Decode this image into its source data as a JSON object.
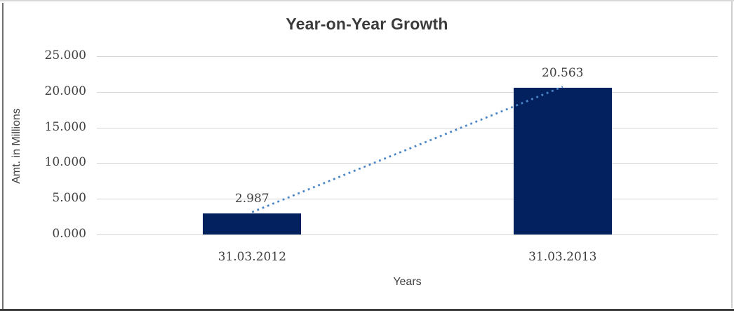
{
  "chart_data": {
    "type": "bar",
    "title": "Year-on-Year Growth",
    "xlabel": "Years",
    "ylabel": "Amt. in Millions",
    "categories": [
      "31.03.2012",
      "31.03.2013"
    ],
    "values": [
      2987,
      20563
    ],
    "data_labels": [
      "2.987",
      "20.563"
    ],
    "yticks": [
      {
        "value": 0,
        "label": "0.000"
      },
      {
        "value": 5000,
        "label": "5.000"
      },
      {
        "value": 10000,
        "label": "10.000"
      },
      {
        "value": 15000,
        "label": "15.000"
      },
      {
        "value": 20000,
        "label": "20.000"
      },
      {
        "value": 25000,
        "label": "25.000"
      }
    ],
    "ylim": [
      0,
      25000
    ],
    "grid": "horizontal",
    "legend": "none",
    "trendline": {
      "type": "linear",
      "style": "dotted",
      "color": "#4a86c8"
    },
    "colors": {
      "bar": "#03215f",
      "gridline": "#d4d4d4",
      "text": "#3f3f3f",
      "title": "#3b3b3b",
      "background": "#ffffff"
    }
  }
}
